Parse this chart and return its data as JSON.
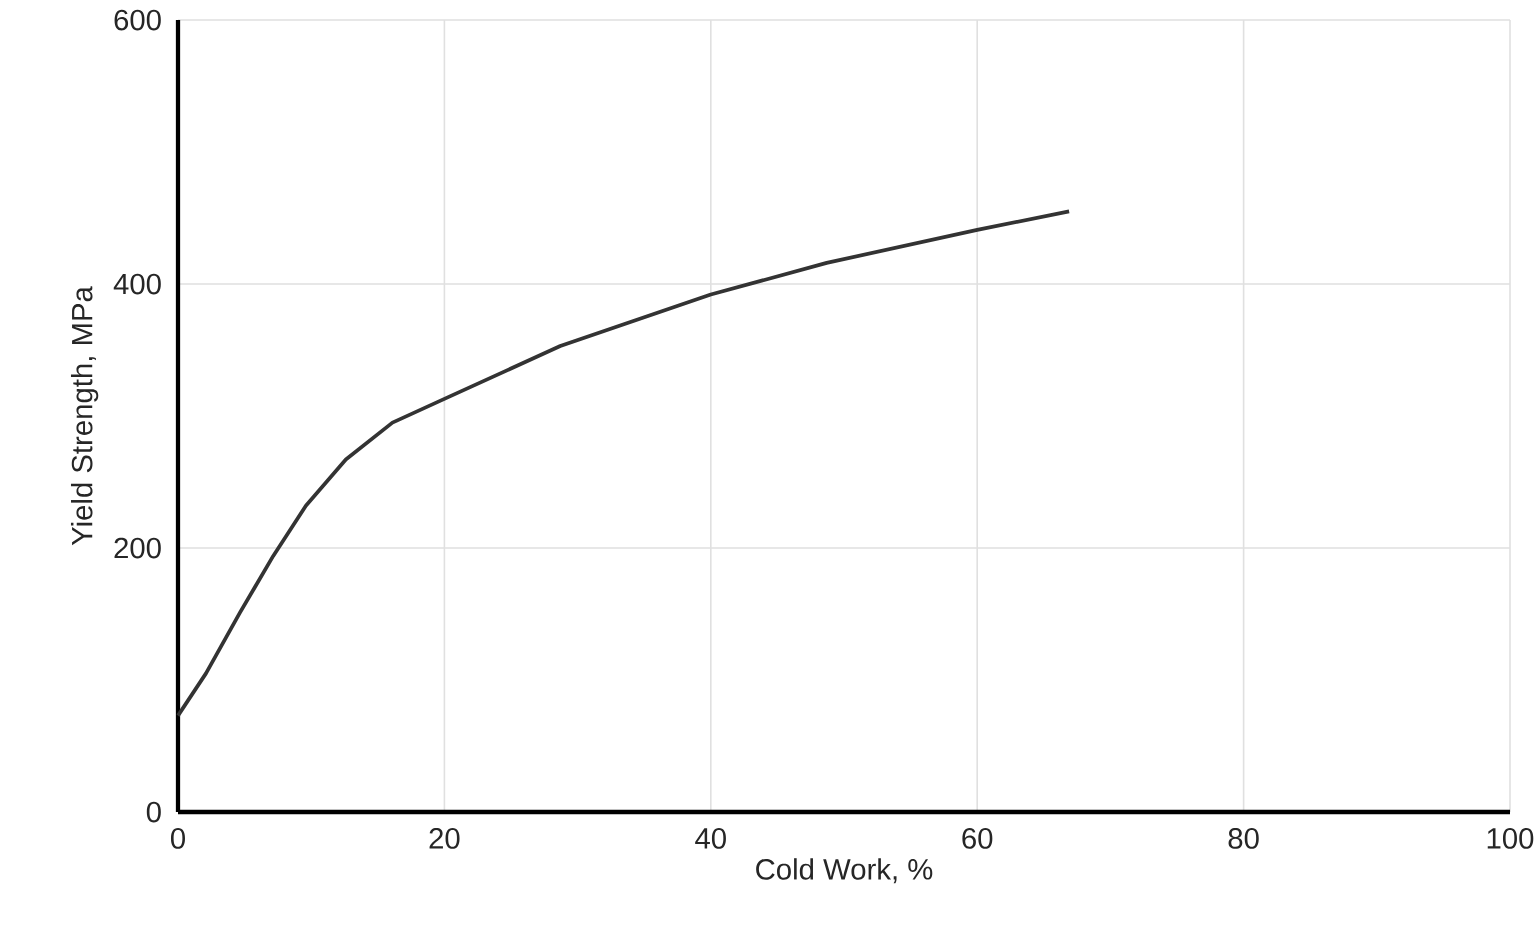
{
  "chart_data": {
    "type": "line",
    "xlabel": "Cold Work, %",
    "ylabel": "Yield Strength, MPa",
    "x": [
      0,
      2.1,
      4.65,
      7.15,
      9.6,
      12.6,
      16.1,
      20,
      28.7,
      40,
      48.7,
      60,
      66.9
    ],
    "series": [
      {
        "color": "#333333",
        "values": [
          73,
          105,
          151,
          194,
          232,
          267,
          295,
          313,
          353,
          392,
          416,
          441,
          455
        ]
      }
    ],
    "xlim": [
      0,
      100
    ],
    "ylim": [
      0,
      600
    ],
    "xticks": [
      0,
      20,
      40,
      60,
      80,
      100
    ],
    "yticks": [
      0,
      200,
      400,
      600
    ],
    "grid": true,
    "marker": "none",
    "line_style": "solid"
  }
}
